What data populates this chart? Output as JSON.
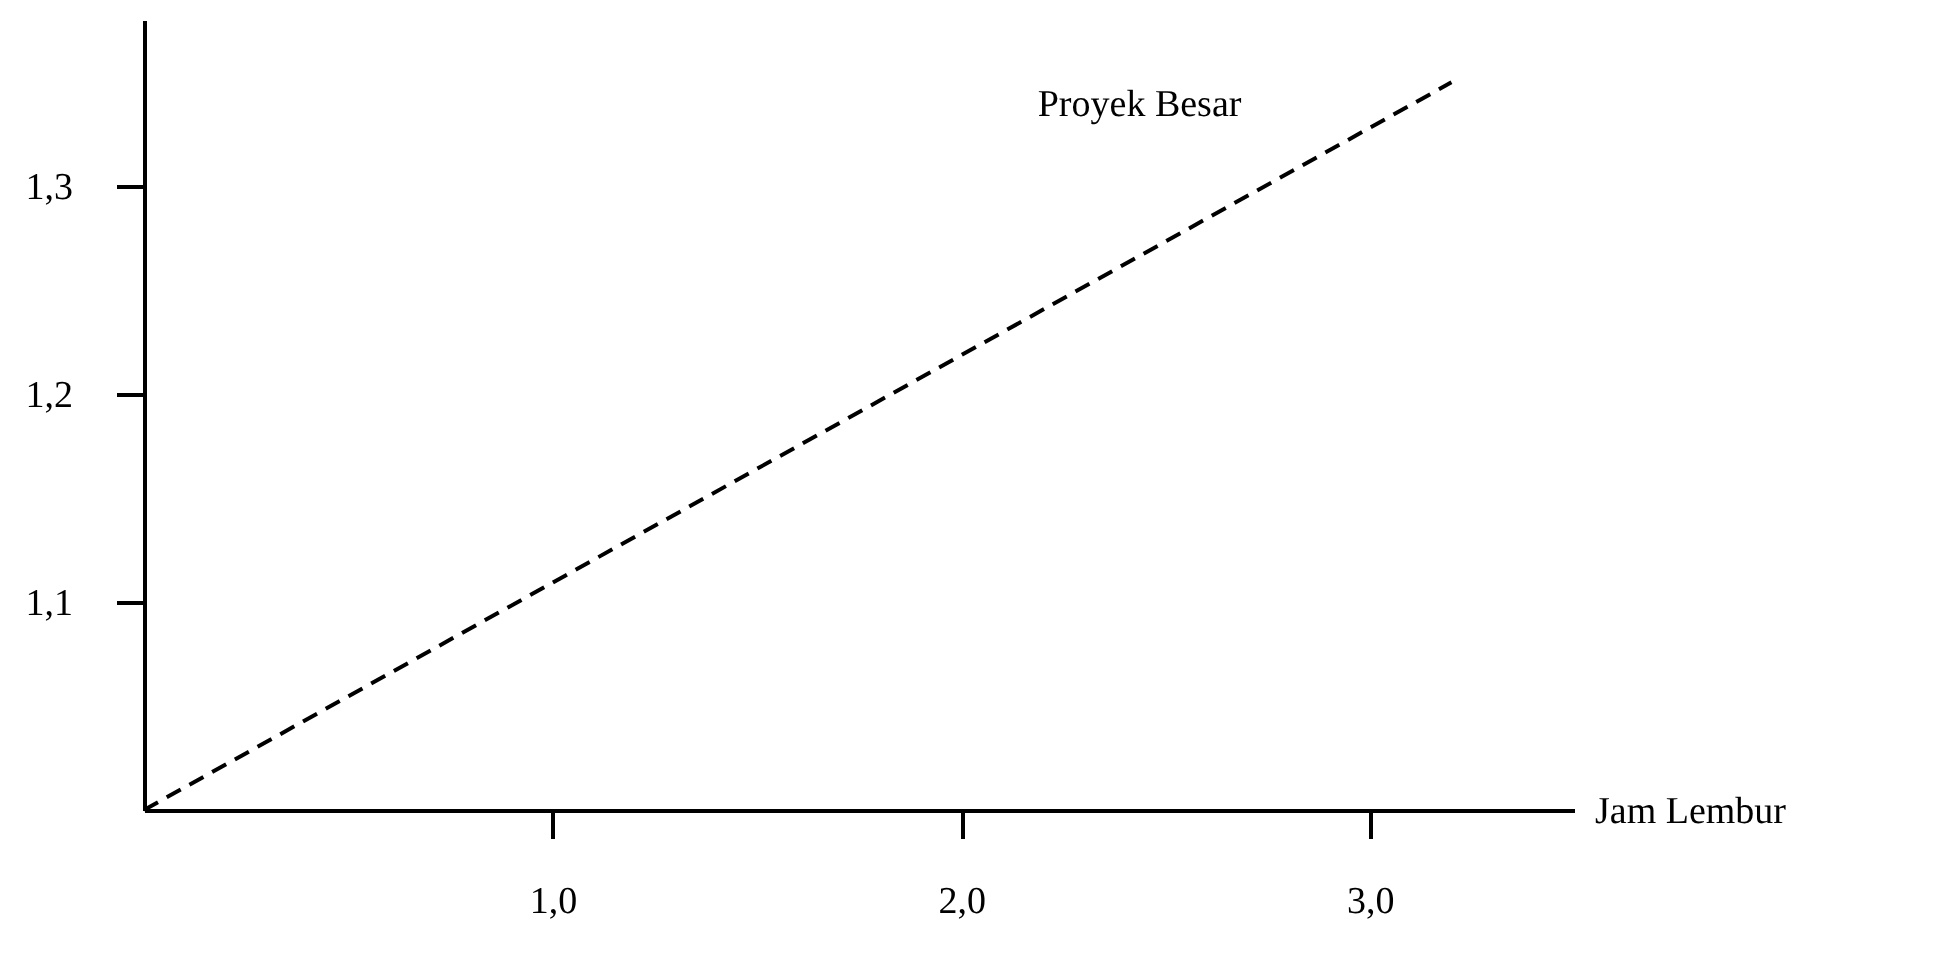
{
  "chart_data": {
    "type": "line",
    "xlabel": "Jam Lembur",
    "x": [
      0,
      3.2
    ],
    "series": [
      {
        "name": "Proyek Besar",
        "color": "#000000",
        "values": [
          1.0,
          1.35
        ]
      }
    ],
    "xlim": [
      0,
      3.5
    ],
    "ylim": [
      1.0,
      1.38
    ],
    "xticks": [
      {
        "value": 1,
        "label": "1,0"
      },
      {
        "value": 2,
        "label": "2,0"
      },
      {
        "value": 3,
        "label": "3,0"
      }
    ],
    "yticks": [
      {
        "value": 1.1,
        "label": "1,1"
      },
      {
        "value": 1.2,
        "label": "1,2"
      },
      {
        "value": 1.3,
        "label": "1,3"
      }
    ],
    "marker": "none",
    "line_style": "dashed"
  }
}
